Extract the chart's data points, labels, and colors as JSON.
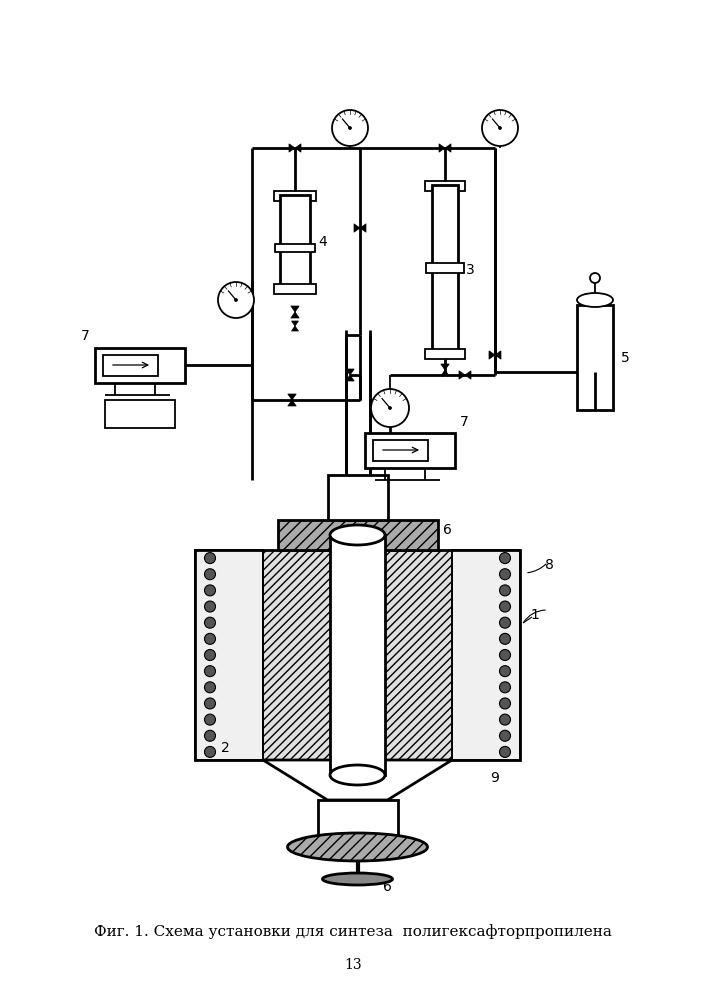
{
  "caption": "Фиг. 1. Схема установки для синтеза  полигексафторпропилена",
  "page_number": "13",
  "bg_color": "#ffffff",
  "caption_fontsize": 11,
  "page_fontsize": 10
}
